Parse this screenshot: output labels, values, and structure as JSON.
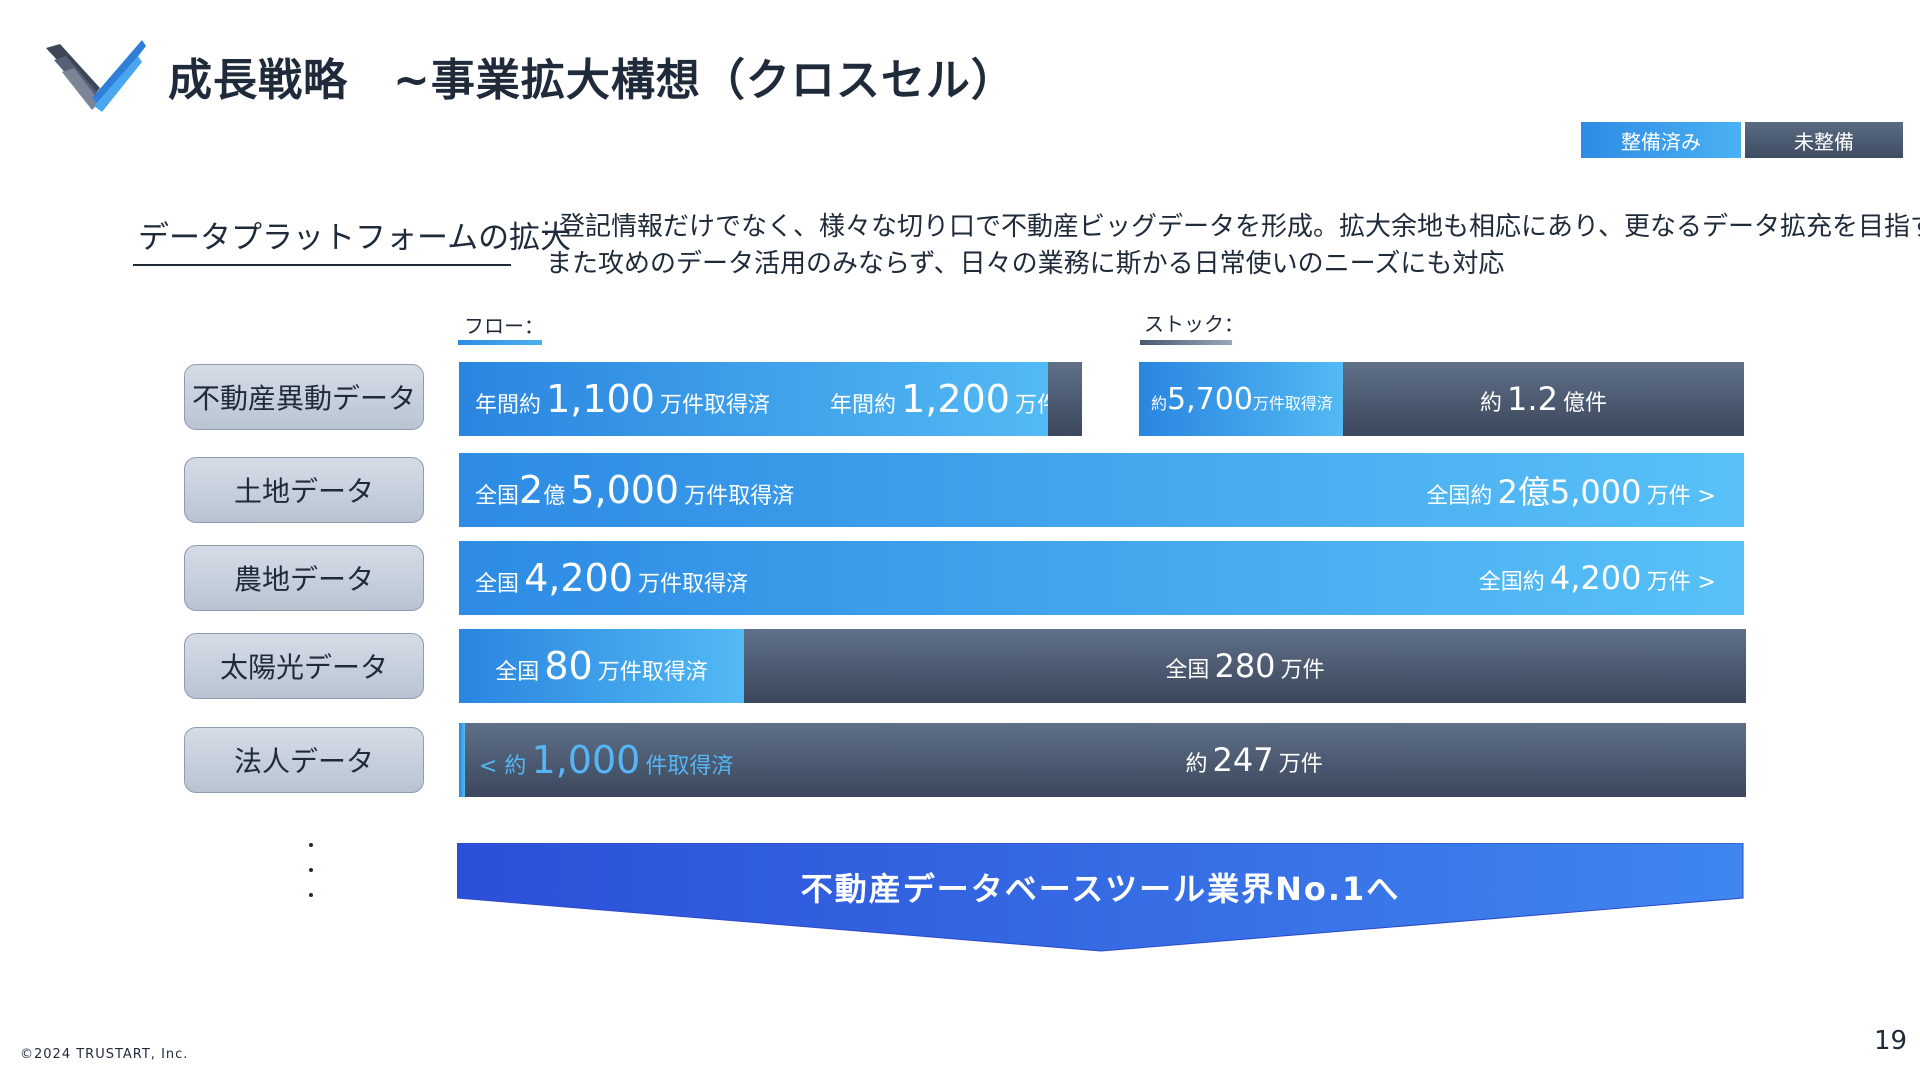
{
  "header": {
    "title": "成長戦略　~事業拡大構想（クロスセル）"
  },
  "legend": {
    "done": "整備済み",
    "todo": "未整備"
  },
  "section": {
    "title": "データプラットフォームの拡大",
    "desc_line1": ": 登記情報だけでなく、様々な切り口で不動産ビッグデータを形成。拡大余地も相応にあり、更なるデータ拡充を目指す",
    "desc_line2": "また攻めのデータ活用のみならず、日々の業務に斯かる日常使いのニーズにも対応"
  },
  "columns": {
    "flow": "フロー：",
    "stock": "ストック："
  },
  "rows": [
    {
      "label": "不動産異動データ",
      "flow_done": {
        "prefix": "年間約",
        "value": "1,100",
        "suffix": "万件取得済"
      },
      "flow_total": {
        "prefix": "年間約",
        "value": "1,200",
        "suffix": "万件>"
      },
      "stock_done": {
        "prefix": "約",
        "value": "5,700",
        "suffix": "万件取得済"
      },
      "stock_total": {
        "prefix": "約",
        "value": "1.2",
        "suffix": "億件"
      }
    },
    {
      "label": "土地データ",
      "done": {
        "prefix": "全国",
        "value1": "2",
        "unit1": "億",
        "value2": "5,000",
        "suffix": "万件取得済"
      },
      "total": {
        "prefix": "全国約",
        "value": "2億5,000",
        "suffix": "万件 >"
      }
    },
    {
      "label": "農地データ",
      "done": {
        "prefix": "全国",
        "value": "4,200",
        "suffix": "万件取得済"
      },
      "total": {
        "prefix": "全国約",
        "value": "4,200",
        "suffix": "万件 >"
      }
    },
    {
      "label": "太陽光データ",
      "done": {
        "prefix": "全国",
        "value": "80",
        "suffix": "万件取得済"
      },
      "total": {
        "prefix": "全国",
        "value": "280",
        "suffix": "万件"
      }
    },
    {
      "label": "法人データ",
      "done": {
        "prefix": "< 約",
        "value": "1,000",
        "suffix": "件取得済"
      },
      "total": {
        "prefix": "約",
        "value": "247",
        "suffix": "万件"
      }
    }
  ],
  "goal": "不動産データベースツール業界No.1へ",
  "footer": {
    "copyright": "©2024 TRUSTART, Inc.",
    "page_number": "19"
  },
  "colors": {
    "done": "#2d8be4",
    "todo": "#4a5870",
    "arrow": "#2f5fe0"
  }
}
